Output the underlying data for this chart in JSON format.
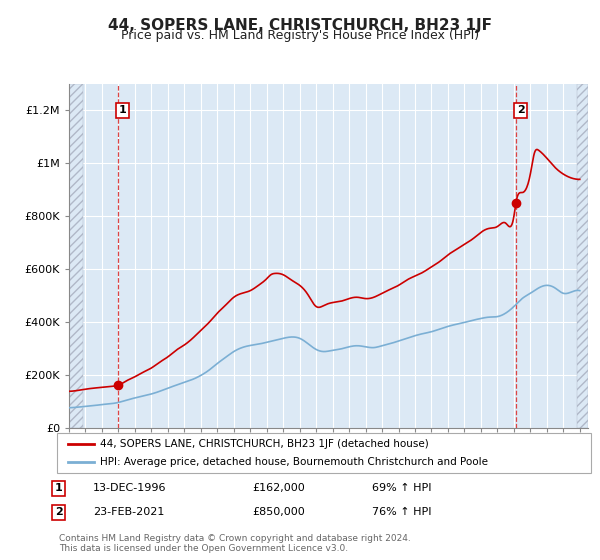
{
  "title": "44, SOPERS LANE, CHRISTCHURCH, BH23 1JF",
  "subtitle": "Price paid vs. HM Land Registry's House Price Index (HPI)",
  "ylabel_ticks": [
    "£0",
    "£200K",
    "£400K",
    "£600K",
    "£800K",
    "£1M",
    "£1.2M"
  ],
  "ytick_values": [
    0,
    200000,
    400000,
    600000,
    800000,
    1000000,
    1200000
  ],
  "ylim": [
    0,
    1300000
  ],
  "xlim_start": 1994.0,
  "xlim_end": 2025.5,
  "sale1_x": 1996.96,
  "sale1_y": 162000,
  "sale2_x": 2021.12,
  "sale2_y": 850000,
  "vline1_x": 1996.96,
  "vline2_x": 2021.12,
  "legend_line1": "44, SOPERS LANE, CHRISTCHURCH, BH23 1JF (detached house)",
  "legend_line2": "HPI: Average price, detached house, Bournemouth Christchurch and Poole",
  "sale1_date": "13-DEC-1996",
  "sale1_price": "£162,000",
  "sale1_hpi": "69% ↑ HPI",
  "sale2_date": "23-FEB-2021",
  "sale2_price": "£850,000",
  "sale2_hpi": "76% ↑ HPI",
  "footer": "Contains HM Land Registry data © Crown copyright and database right 2024.\nThis data is licensed under the Open Government Licence v3.0.",
  "line_color_red": "#cc0000",
  "line_color_blue": "#7bafd4",
  "plot_bg_color": "#dce9f5",
  "hatch_color": "#b0b8c8",
  "grid_color": "#ffffff",
  "title_fontsize": 11,
  "subtitle_fontsize": 9,
  "tick_fontsize": 8
}
